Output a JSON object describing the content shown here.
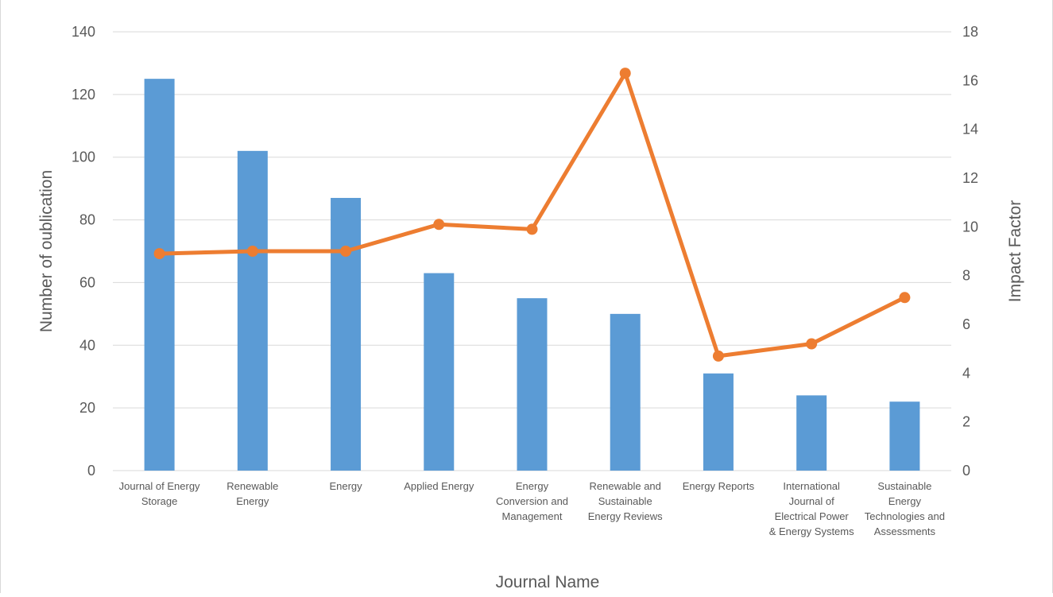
{
  "chart_data": {
    "type": "bar",
    "title": "",
    "xlabel": "Journal Name",
    "ylabel": "Number of oublication",
    "y2label": "Impact Factor",
    "categories": [
      "Journal of Energy Storage",
      "Renewable Energy",
      "Energy",
      "Applied Energy",
      "Energy Conversion and Management",
      "Renewable and Sustainable Energy Reviews",
      "Energy Reports",
      "International Journal of Electrical Power & Energy Systems",
      "Sustainable Energy Technologies and Assessments"
    ],
    "category_lines": [
      [
        "Journal of Energy",
        "Storage"
      ],
      [
        "Renewable",
        "Energy"
      ],
      [
        "Energy"
      ],
      [
        "Applied Energy"
      ],
      [
        "Energy",
        "Conversion and",
        "Management"
      ],
      [
        "Renewable and",
        "Sustainable",
        "Energy Reviews"
      ],
      [
        "Energy Reports"
      ],
      [
        "International",
        "Journal of",
        "Electrical Power",
        "& Energy Systems"
      ],
      [
        "Sustainable",
        "Energy",
        "Technologies and",
        "Assessments"
      ]
    ],
    "series": [
      {
        "kind": "bar",
        "axis": "left",
        "values": [
          125,
          102,
          87,
          63,
          55,
          50,
          31,
          24,
          22
        ],
        "color": "#5b9bd5"
      },
      {
        "kind": "line",
        "axis": "right",
        "values": [
          8.9,
          9.0,
          9.0,
          10.1,
          9.9,
          16.3,
          4.7,
          5.2,
          7.1
        ],
        "color": "#ed7d31"
      }
    ],
    "ylim": [
      0,
      140
    ],
    "yticks": [
      0,
      20,
      40,
      60,
      80,
      100,
      120,
      140
    ],
    "y2lim": [
      0,
      18
    ],
    "y2ticks": [
      0,
      2,
      4,
      6,
      8,
      10,
      12,
      14,
      16,
      18
    ],
    "grid": true,
    "gridColor": "#d9d9d9",
    "legend": "none"
  }
}
